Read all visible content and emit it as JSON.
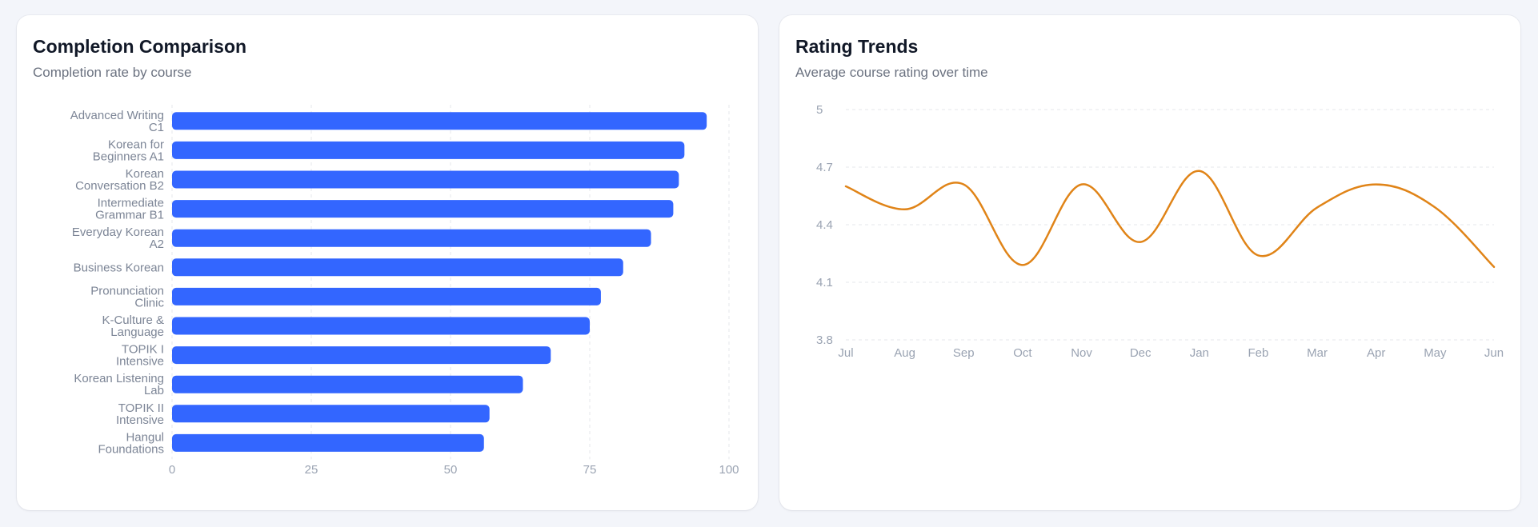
{
  "left_card": {
    "title": "Completion Comparison",
    "subtitle": "Completion rate by course"
  },
  "right_card": {
    "title": "Rating Trends",
    "subtitle": "Average course rating over time"
  },
  "colors": {
    "bar": "#3366ff",
    "line": "#e08418",
    "grid": "#e5e7eb",
    "tick": "#9aa3b2"
  },
  "chart_data": [
    {
      "type": "bar",
      "orientation": "horizontal",
      "categories": [
        "Advanced Writing C1",
        "Korean for Beginners A1",
        "Korean Conversation B2",
        "Intermediate Grammar B1",
        "Everyday Korean A2",
        "Business Korean",
        "Pronunciation Clinic",
        "K-Culture & Language",
        "TOPIK I Intensive",
        "Korean Listening Lab",
        "TOPIK II Intensive",
        "Hangul Foundations"
      ],
      "values": [
        96,
        92,
        91,
        90,
        86,
        81,
        77,
        75,
        68,
        63,
        57,
        56
      ],
      "xlim": [
        0,
        100
      ],
      "xticks": [
        "0",
        "25",
        "50",
        "75",
        "100"
      ],
      "grid": true
    },
    {
      "type": "line",
      "categories": [
        "Jul",
        "Aug",
        "Sep",
        "Oct",
        "Nov",
        "Dec",
        "Jan",
        "Feb",
        "Mar",
        "Apr",
        "May",
        "Jun"
      ],
      "values": [
        4.6,
        4.48,
        4.61,
        4.19,
        4.61,
        4.31,
        4.68,
        4.24,
        4.49,
        4.61,
        4.49,
        4.18
      ],
      "ylim": [
        3.8,
        5
      ],
      "yticks": [
        "3.8",
        "4.1",
        "4.4",
        "4.7",
        "5"
      ],
      "grid": true,
      "curve": "smooth"
    }
  ]
}
